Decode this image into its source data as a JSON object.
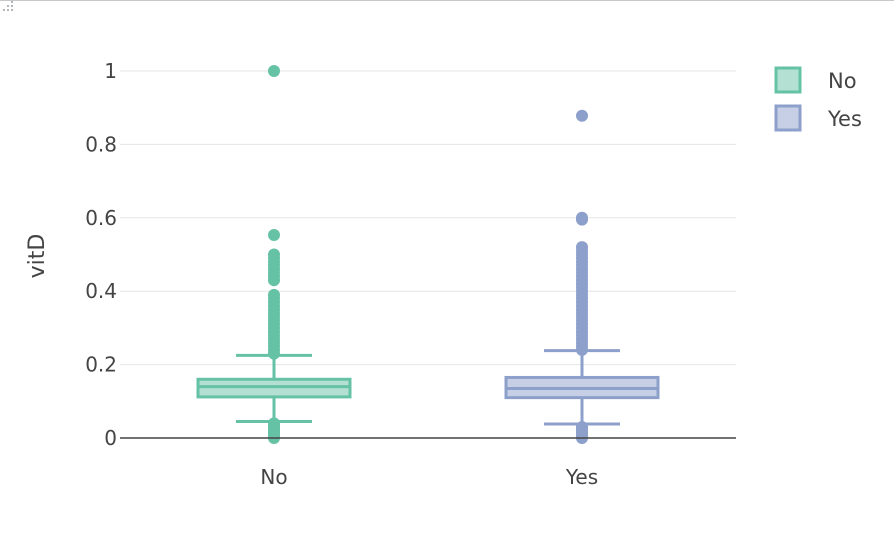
{
  "chart_data": {
    "type": "box",
    "ylabel": "vitD",
    "xlabel": "",
    "ylim": [
      0,
      1.1
    ],
    "y_ticks": [
      0,
      0.2,
      0.4,
      0.6,
      0.8,
      1
    ],
    "y_tick_labels": [
      "0",
      "0.2",
      "0.4",
      "0.6",
      "0.8",
      "1"
    ],
    "categories": [
      "No",
      "Yes"
    ],
    "grid": true,
    "legend_position": "top-right",
    "series": [
      {
        "name": "No",
        "color": "#66c2a5",
        "fill": "#b3e0d2",
        "q1": 0.112,
        "median": 0.14,
        "q3": 0.16,
        "whisker_low": 0.045,
        "whisker_high": 0.225,
        "outliers": [
          0.0,
          0.005,
          0.01,
          0.015,
          0.02,
          0.025,
          0.03,
          0.035,
          0.04,
          0.23,
          0.24,
          0.25,
          0.26,
          0.27,
          0.28,
          0.29,
          0.3,
          0.31,
          0.32,
          0.33,
          0.34,
          0.35,
          0.36,
          0.37,
          0.38,
          0.39,
          0.43,
          0.44,
          0.45,
          0.46,
          0.47,
          0.48,
          0.49,
          0.5,
          0.553,
          1.0
        ]
      },
      {
        "name": "Yes",
        "color": "#8da0cb",
        "fill": "#c6cfe5",
        "q1": 0.11,
        "median": 0.135,
        "q3": 0.165,
        "whisker_low": 0.038,
        "whisker_high": 0.238,
        "outliers": [
          0.0,
          0.005,
          0.01,
          0.015,
          0.02,
          0.025,
          0.03,
          0.24,
          0.25,
          0.26,
          0.27,
          0.28,
          0.29,
          0.3,
          0.31,
          0.32,
          0.33,
          0.34,
          0.35,
          0.36,
          0.37,
          0.38,
          0.39,
          0.4,
          0.41,
          0.42,
          0.43,
          0.44,
          0.45,
          0.46,
          0.47,
          0.48,
          0.49,
          0.5,
          0.51,
          0.52,
          0.595,
          0.6,
          0.878
        ]
      }
    ]
  }
}
